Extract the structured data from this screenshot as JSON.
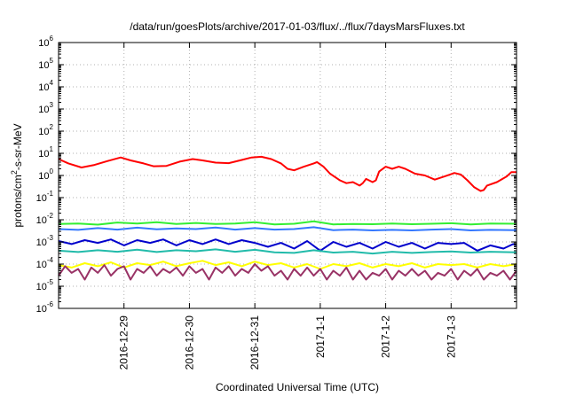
{
  "chart_data": {
    "type": "line",
    "title": "/data/run/goesPlots/archive/2017-01-03/flux/../flux/7daysMarsFluxes.txt",
    "xlabel": "Coordinated Universal Time (UTC)",
    "ylabel": "protons/cm²-s-sr-MeV",
    "y_scale": "log",
    "ylim": [
      1e-06,
      1000000.0
    ],
    "xlim": [
      0,
      7
    ],
    "grid": true,
    "legend": "none",
    "y_tick_labels": [
      {
        "base": "10",
        "exp": "-6"
      },
      {
        "base": "10",
        "exp": "-5"
      },
      {
        "base": "10",
        "exp": "-4"
      },
      {
        "base": "10",
        "exp": "-3"
      },
      {
        "base": "10",
        "exp": "-2"
      },
      {
        "base": "10",
        "exp": "-1"
      },
      {
        "base": "10",
        "exp": "0"
      },
      {
        "base": "10",
        "exp": "1"
      },
      {
        "base": "10",
        "exp": "2"
      },
      {
        "base": "10",
        "exp": "3"
      },
      {
        "base": "10",
        "exp": "4"
      },
      {
        "base": "10",
        "exp": "5"
      },
      {
        "base": "10",
        "exp": "6"
      }
    ],
    "x_ticks": [
      {
        "label": "2016-12-29",
        "x": 1
      },
      {
        "label": "2016-12-30",
        "x": 2
      },
      {
        "label": "2016-12-31",
        "x": 3
      },
      {
        "label": "2017-1-1",
        "x": 4
      },
      {
        "label": "2017-1-2",
        "x": 5
      },
      {
        "label": "2017-1-3",
        "x": 6
      }
    ],
    "series": [
      {
        "color": "#ff0000",
        "stroke": 2,
        "points": [
          [
            0,
            5.5
          ],
          [
            0.15,
            3.5
          ],
          [
            0.35,
            2.3
          ],
          [
            0.55,
            3
          ],
          [
            0.75,
            4.5
          ],
          [
            0.95,
            6.5
          ],
          [
            1.1,
            4.8
          ],
          [
            1.3,
            3.5
          ],
          [
            1.45,
            2.6
          ],
          [
            1.65,
            2.7
          ],
          [
            1.85,
            4.2
          ],
          [
            2.05,
            5.5
          ],
          [
            2.2,
            4.8
          ],
          [
            2.4,
            3.8
          ],
          [
            2.6,
            3.6
          ],
          [
            2.8,
            5
          ],
          [
            2.95,
            6.5
          ],
          [
            3.1,
            7
          ],
          [
            3.25,
            5.5
          ],
          [
            3.4,
            3.5
          ],
          [
            3.5,
            2
          ],
          [
            3.6,
            1.7
          ],
          [
            3.75,
            2.5
          ],
          [
            3.9,
            3.5
          ],
          [
            3.95,
            4
          ],
          [
            4.05,
            2.5
          ],
          [
            4.15,
            1.2
          ],
          [
            4.3,
            0.6
          ],
          [
            4.4,
            0.45
          ],
          [
            4.5,
            0.5
          ],
          [
            4.6,
            0.35
          ],
          [
            4.65,
            0.45
          ],
          [
            4.7,
            0.7
          ],
          [
            4.8,
            0.5
          ],
          [
            4.85,
            0.6
          ],
          [
            4.9,
            1.5
          ],
          [
            5,
            2.5
          ],
          [
            5.1,
            2
          ],
          [
            5.2,
            2.5
          ],
          [
            5.3,
            2
          ],
          [
            5.45,
            1.2
          ],
          [
            5.6,
            1
          ],
          [
            5.75,
            0.65
          ],
          [
            5.9,
            0.9
          ],
          [
            6.05,
            1.3
          ],
          [
            6.15,
            1.1
          ],
          [
            6.25,
            0.6
          ],
          [
            6.35,
            0.3
          ],
          [
            6.45,
            0.2
          ],
          [
            6.5,
            0.22
          ],
          [
            6.55,
            0.35
          ],
          [
            6.7,
            0.5
          ],
          [
            6.85,
            0.9
          ],
          [
            6.92,
            1.4
          ],
          [
            7,
            1.4
          ]
        ]
      },
      {
        "color": "#33ee33",
        "stroke": 2,
        "points": [
          [
            0,
            0.0065
          ],
          [
            0.3,
            0.0068
          ],
          [
            0.6,
            0.006
          ],
          [
            0.9,
            0.0075
          ],
          [
            1.2,
            0.0068
          ],
          [
            1.5,
            0.0078
          ],
          [
            1.8,
            0.0065
          ],
          [
            2.1,
            0.0072
          ],
          [
            2.4,
            0.0064
          ],
          [
            2.7,
            0.0068
          ],
          [
            3.0,
            0.0078
          ],
          [
            3.3,
            0.0062
          ],
          [
            3.6,
            0.0066
          ],
          [
            3.9,
            0.0085
          ],
          [
            4.2,
            0.0062
          ],
          [
            4.5,
            0.0065
          ],
          [
            4.8,
            0.0063
          ],
          [
            5.1,
            0.0068
          ],
          [
            5.4,
            0.0063
          ],
          [
            5.7,
            0.0066
          ],
          [
            6.0,
            0.007
          ],
          [
            6.3,
            0.0062
          ],
          [
            6.6,
            0.0068
          ],
          [
            7,
            0.0066
          ]
        ]
      },
      {
        "color": "#3377ff",
        "stroke": 2,
        "points": [
          [
            0,
            0.0038
          ],
          [
            0.3,
            0.0035
          ],
          [
            0.6,
            0.0042
          ],
          [
            0.9,
            0.0036
          ],
          [
            1.2,
            0.0044
          ],
          [
            1.5,
            0.0037
          ],
          [
            1.8,
            0.0041
          ],
          [
            2.1,
            0.0038
          ],
          [
            2.4,
            0.0045
          ],
          [
            2.7,
            0.0036
          ],
          [
            3.0,
            0.0042
          ],
          [
            3.3,
            0.0036
          ],
          [
            3.6,
            0.0038
          ],
          [
            3.9,
            0.0046
          ],
          [
            4.2,
            0.0034
          ],
          [
            4.5,
            0.0036
          ],
          [
            4.8,
            0.0033
          ],
          [
            5.1,
            0.0035
          ],
          [
            5.4,
            0.0033
          ],
          [
            5.7,
            0.0036
          ],
          [
            6.0,
            0.0038
          ],
          [
            6.3,
            0.0033
          ],
          [
            6.6,
            0.0035
          ],
          [
            7,
            0.0034
          ]
        ]
      },
      {
        "color": "#0000cc",
        "stroke": 2,
        "points": [
          [
            0,
            0.0011
          ],
          [
            0.2,
            0.0008
          ],
          [
            0.4,
            0.0012
          ],
          [
            0.6,
            0.0009
          ],
          [
            0.8,
            0.0013
          ],
          [
            1.0,
            0.0007
          ],
          [
            1.2,
            0.0012
          ],
          [
            1.4,
            0.0009
          ],
          [
            1.6,
            0.0013
          ],
          [
            1.8,
            0.0007
          ],
          [
            2.0,
            0.0012
          ],
          [
            2.2,
            0.0008
          ],
          [
            2.4,
            0.0013
          ],
          [
            2.6,
            0.0008
          ],
          [
            2.8,
            0.0012
          ],
          [
            3.0,
            0.0009
          ],
          [
            3.2,
            0.0006
          ],
          [
            3.4,
            0.0009
          ],
          [
            3.6,
            0.0005
          ],
          [
            3.8,
            0.0011
          ],
          [
            4.0,
            0.0004
          ],
          [
            4.2,
            0.001
          ],
          [
            4.4,
            0.0006
          ],
          [
            4.6,
            0.0009
          ],
          [
            4.8,
            0.0005
          ],
          [
            5.0,
            0.001
          ],
          [
            5.2,
            0.0006
          ],
          [
            5.4,
            0.0009
          ],
          [
            5.6,
            0.0005
          ],
          [
            5.8,
            0.0009
          ],
          [
            6.0,
            0.0008
          ],
          [
            6.2,
            0.0009
          ],
          [
            6.4,
            0.0004
          ],
          [
            6.6,
            0.0007
          ],
          [
            6.8,
            0.0005
          ],
          [
            6.95,
            0.0008
          ],
          [
            7,
            0.0007
          ]
        ]
      },
      {
        "color": "#22bbaa",
        "stroke": 2,
        "points": [
          [
            0,
            0.0004
          ],
          [
            0.3,
            0.00035
          ],
          [
            0.6,
            0.00042
          ],
          [
            0.9,
            0.00036
          ],
          [
            1.2,
            0.00045
          ],
          [
            1.5,
            0.00035
          ],
          [
            1.8,
            0.00042
          ],
          [
            2.1,
            0.00038
          ],
          [
            2.4,
            0.00046
          ],
          [
            2.7,
            0.00036
          ],
          [
            3.0,
            0.00044
          ],
          [
            3.3,
            0.00034
          ],
          [
            3.6,
            0.00032
          ],
          [
            3.9,
            0.00042
          ],
          [
            4.2,
            0.00033
          ],
          [
            4.5,
            0.00036
          ],
          [
            4.8,
            0.0003
          ],
          [
            5.1,
            0.00036
          ],
          [
            5.4,
            0.00032
          ],
          [
            5.7,
            0.00035
          ],
          [
            6.0,
            0.00037
          ],
          [
            6.3,
            0.00033
          ],
          [
            6.6,
            0.00036
          ],
          [
            7,
            0.00034
          ]
        ]
      },
      {
        "color": "#ffff00",
        "stroke": 2,
        "points": [
          [
            0,
            9e-05
          ],
          [
            0.2,
            7e-05
          ],
          [
            0.4,
            0.00011
          ],
          [
            0.6,
            8e-05
          ],
          [
            0.8,
            0.00012
          ],
          [
            1.0,
            7e-05
          ],
          [
            1.2,
            0.00011
          ],
          [
            1.4,
            9e-05
          ],
          [
            1.6,
            0.00013
          ],
          [
            1.8,
            8e-05
          ],
          [
            2.0,
            0.00011
          ],
          [
            2.2,
            0.00014
          ],
          [
            2.4,
            9e-05
          ],
          [
            2.6,
            0.00012
          ],
          [
            2.8,
            8e-05
          ],
          [
            3.0,
            0.00013
          ],
          [
            3.2,
            9e-05
          ],
          [
            3.4,
            0.00011
          ],
          [
            3.6,
            7e-05
          ],
          [
            3.8,
            0.0001
          ],
          [
            4.0,
            6e-05
          ],
          [
            4.2,
            0.0001
          ],
          [
            4.4,
            8e-05
          ],
          [
            4.6,
            0.00011
          ],
          [
            4.8,
            7e-05
          ],
          [
            5.0,
            0.0001
          ],
          [
            5.2,
            8e-05
          ],
          [
            5.4,
            0.00011
          ],
          [
            5.6,
            7e-05
          ],
          [
            5.8,
            0.0001
          ],
          [
            6.0,
            9e-05
          ],
          [
            6.2,
            0.0001
          ],
          [
            6.4,
            7e-05
          ],
          [
            6.6,
            0.0001
          ],
          [
            6.8,
            8e-05
          ],
          [
            7,
            0.0001
          ]
        ]
      },
      {
        "color": "#993366",
        "stroke": 2,
        "points": [
          [
            0,
            3e-05
          ],
          [
            0.1,
            8e-05
          ],
          [
            0.2,
            4e-05
          ],
          [
            0.3,
            6e-05
          ],
          [
            0.4,
            2e-05
          ],
          [
            0.5,
            7e-05
          ],
          [
            0.6,
            4e-05
          ],
          [
            0.7,
            9e-05
          ],
          [
            0.8,
            3e-05
          ],
          [
            0.9,
            6e-05
          ],
          [
            1.0,
            8e-05
          ],
          [
            1.1,
            2e-05
          ],
          [
            1.2,
            6e-05
          ],
          [
            1.3,
            4e-05
          ],
          [
            1.4,
            8e-05
          ],
          [
            1.5,
            3e-05
          ],
          [
            1.6,
            6e-05
          ],
          [
            1.7,
            4e-05
          ],
          [
            1.8,
            7e-05
          ],
          [
            1.9,
            3e-05
          ],
          [
            2.0,
            8e-05
          ],
          [
            2.1,
            4e-05
          ],
          [
            2.2,
            6e-05
          ],
          [
            2.3,
            2e-05
          ],
          [
            2.4,
            7e-05
          ],
          [
            2.5,
            4e-05
          ],
          [
            2.6,
            8e-05
          ],
          [
            2.7,
            3e-05
          ],
          [
            2.8,
            6e-05
          ],
          [
            2.9,
            4e-05
          ],
          [
            3.0,
            0.0001
          ],
          [
            3.1,
            5e-05
          ],
          [
            3.2,
            8e-05
          ],
          [
            3.3,
            3e-05
          ],
          [
            3.4,
            5e-05
          ],
          [
            3.5,
            2e-05
          ],
          [
            3.6,
            6e-05
          ],
          [
            3.7,
            3e-05
          ],
          [
            3.8,
            7e-05
          ],
          [
            3.9,
            3e-05
          ],
          [
            4.0,
            6e-05
          ],
          [
            4.1,
            2e-05
          ],
          [
            4.2,
            5e-05
          ],
          [
            4.3,
            3e-05
          ],
          [
            4.4,
            7e-05
          ],
          [
            4.5,
            2e-05
          ],
          [
            4.6,
            5e-05
          ],
          [
            4.7,
            2e-05
          ],
          [
            4.8,
            4e-05
          ],
          [
            4.9,
            3e-05
          ],
          [
            5.0,
            6e-05
          ],
          [
            5.1,
            2e-05
          ],
          [
            5.2,
            5e-05
          ],
          [
            5.3,
            3e-05
          ],
          [
            5.4,
            6e-05
          ],
          [
            5.5,
            3e-05
          ],
          [
            5.6,
            5e-05
          ],
          [
            5.7,
            2e-05
          ],
          [
            5.8,
            4e-05
          ],
          [
            5.9,
            3e-05
          ],
          [
            6.0,
            6e-05
          ],
          [
            6.1,
            2e-05
          ],
          [
            6.2,
            5e-05
          ],
          [
            6.3,
            3e-05
          ],
          [
            6.4,
            6e-05
          ],
          [
            6.5,
            2e-05
          ],
          [
            6.6,
            4e-05
          ],
          [
            6.7,
            3e-05
          ],
          [
            6.8,
            5e-05
          ],
          [
            6.9,
            2e-05
          ],
          [
            7,
            5e-05
          ]
        ]
      }
    ]
  }
}
